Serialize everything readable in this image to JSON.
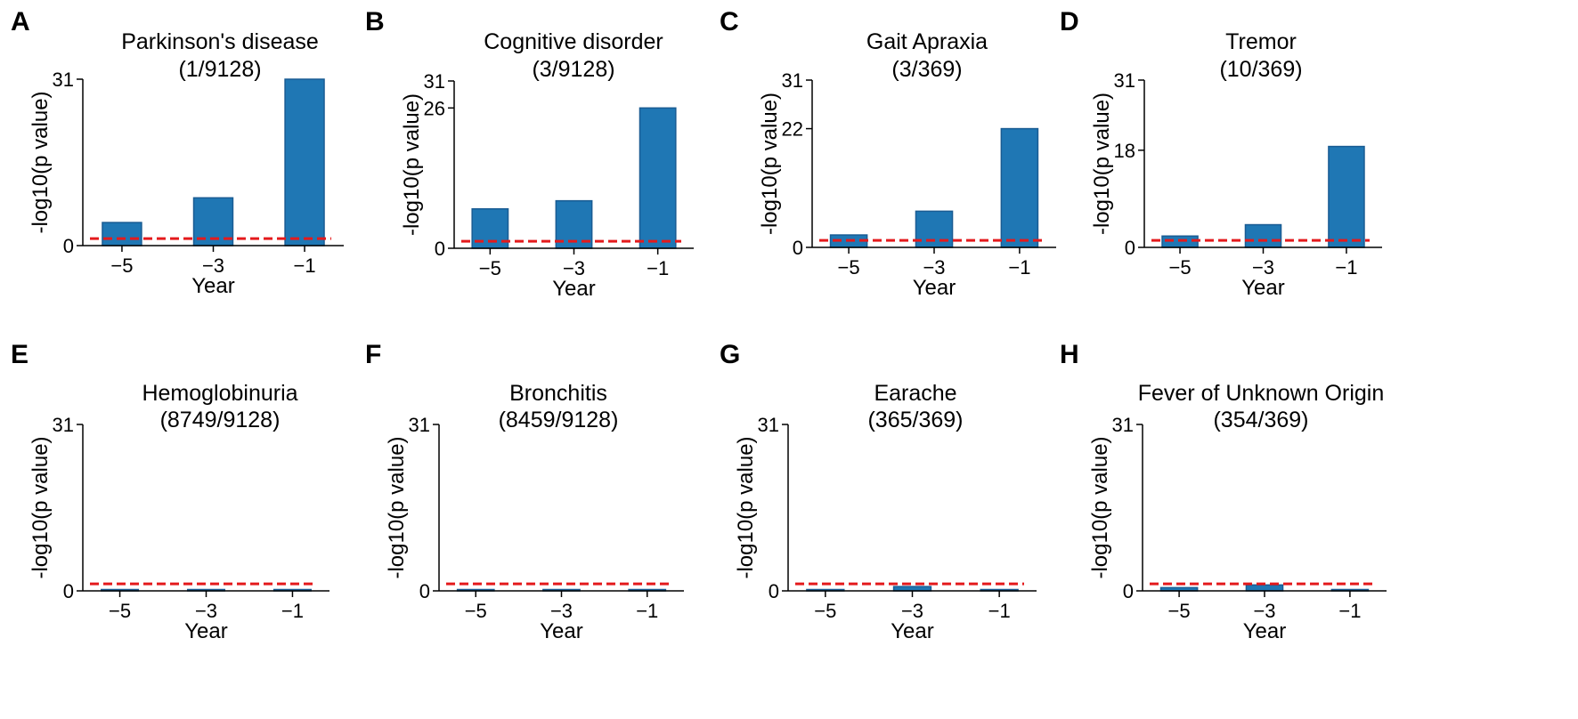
{
  "figure": {
    "colors": {
      "bar": "#1f77b4",
      "bar_edge": "#1a5c93",
      "threshold": "#e41a1c",
      "axis": "#000000"
    }
  },
  "chart_data": [
    {
      "panel": "A",
      "type": "bar",
      "title": "Parkinson's disease",
      "subtitle": "(1/9128)",
      "categories": [
        "−5",
        "−3",
        "−1"
      ],
      "values": [
        4.3,
        8.9,
        31
      ],
      "threshold": 1.3,
      "ylim": [
        0,
        31
      ],
      "yticks": [
        0,
        31
      ],
      "xlabel": "Year",
      "ylabel": "-log10(p value)"
    },
    {
      "panel": "B",
      "type": "bar",
      "title": "Cognitive disorder",
      "subtitle": "(3/9128)",
      "categories": [
        "−5",
        "−3",
        "−1"
      ],
      "values": [
        7.3,
        8.8,
        26
      ],
      "threshold": 1.3,
      "ylim": [
        0,
        31
      ],
      "yticks": [
        0,
        26,
        31
      ],
      "xlabel": "Year",
      "ylabel": "-log10(p value)"
    },
    {
      "panel": "C",
      "type": "bar",
      "title": "Gait Apraxia",
      "subtitle": "(3/369)",
      "categories": [
        "−5",
        "−3",
        "−1"
      ],
      "values": [
        2.3,
        6.7,
        22
      ],
      "threshold": 1.3,
      "ylim": [
        0,
        31
      ],
      "yticks": [
        0,
        22,
        31
      ],
      "xlabel": "Year",
      "ylabel": "-log10(p value)"
    },
    {
      "panel": "D",
      "type": "bar",
      "title": "Tremor",
      "subtitle": "(10/369)",
      "categories": [
        "−5",
        "−3",
        "−1"
      ],
      "values": [
        2.1,
        4.2,
        18.7
      ],
      "threshold": 1.3,
      "ylim": [
        0,
        31
      ],
      "yticks": [
        0,
        18,
        31
      ],
      "xlabel": "Year",
      "ylabel": "-log10(p value)"
    },
    {
      "panel": "E",
      "type": "bar",
      "title": "Hemoglobinuria",
      "subtitle": "(8749/9128)",
      "categories": [
        "−5",
        "−3",
        "−1"
      ],
      "values": [
        0.2,
        0.05,
        0.05
      ],
      "threshold": 1.3,
      "ylim": [
        0,
        31
      ],
      "yticks": [
        0,
        31
      ],
      "xlabel": "Year",
      "ylabel": "-log10(p value)"
    },
    {
      "panel": "F",
      "type": "bar",
      "title": "Bronchitis",
      "subtitle": "(8459/9128)",
      "categories": [
        "−5",
        "−3",
        "−1"
      ],
      "values": [
        0.05,
        0.05,
        0.2
      ],
      "threshold": 1.3,
      "ylim": [
        0,
        31
      ],
      "yticks": [
        0,
        31
      ],
      "xlabel": "Year",
      "ylabel": "-log10(p value)"
    },
    {
      "panel": "G",
      "type": "bar",
      "title": "Earache",
      "subtitle": "(365/369)",
      "categories": [
        "−5",
        "−3",
        "−1"
      ],
      "values": [
        0.15,
        0.8,
        0.05
      ],
      "threshold": 1.3,
      "ylim": [
        0,
        31
      ],
      "yticks": [
        0,
        31
      ],
      "xlabel": "Year",
      "ylabel": "-log10(p value)"
    },
    {
      "panel": "H",
      "type": "bar",
      "title": "Fever of Unknown Origin",
      "subtitle": "(354/369)",
      "categories": [
        "−5",
        "−3",
        "−1"
      ],
      "values": [
        0.6,
        1.1,
        0.25
      ],
      "threshold": 1.3,
      "ylim": [
        0,
        31
      ],
      "yticks": [
        0,
        31
      ],
      "xlabel": "Year",
      "ylabel": "-log10(p value)"
    }
  ]
}
